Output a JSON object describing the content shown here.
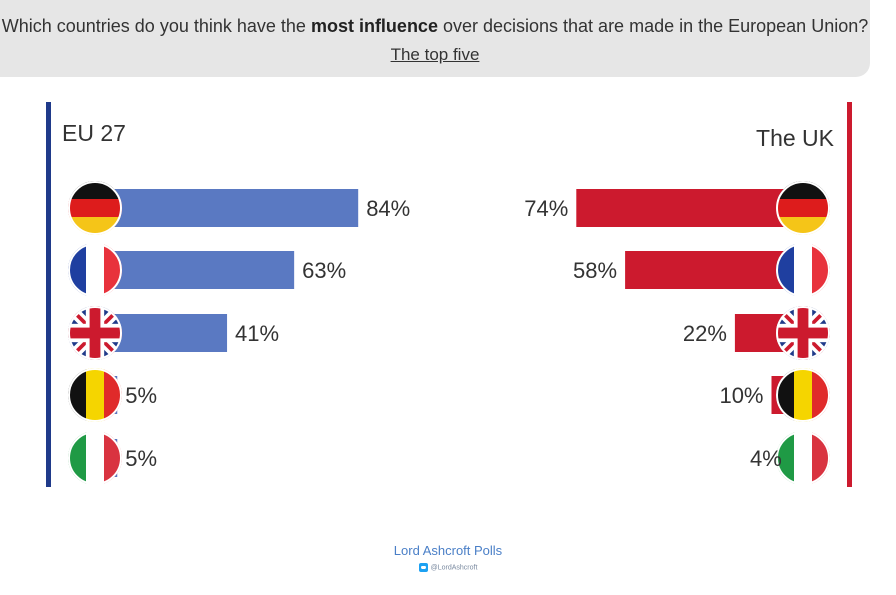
{
  "header": {
    "question_before": "Which countries do you think have the ",
    "question_bold": "most influence",
    "question_after": " over decisions that are made in the European Union?",
    "subtitle": "The top five"
  },
  "footer": {
    "brand": "Lord Ashcroft Polls",
    "handle": "@LordAshcroft",
    "twitter_icon": "twitter-bird-icon"
  },
  "colors": {
    "eu_bar": "#5a79c2",
    "uk_bar": "#cc1a2e",
    "eu_line": "#1f3a8a",
    "uk_line": "#cc1a2e"
  },
  "chart_data": [
    {
      "type": "bar",
      "title": "EU 27",
      "orientation": "horizontal",
      "categories": [
        "Germany",
        "France",
        "UK",
        "Belgium",
        "Italy"
      ],
      "category_icons": [
        "germany-flag-icon",
        "france-flag-icon",
        "uk-flag-icon",
        "belgium-flag-icon",
        "italy-flag-icon"
      ],
      "values": [
        84,
        63,
        41,
        5,
        5
      ],
      "labels": [
        "84%",
        "63%",
        "41%",
        "5%",
        "5%"
      ],
      "unit": "%",
      "xlim": [
        0,
        100
      ],
      "bar_color": "#5a79c2"
    },
    {
      "type": "bar",
      "title": "The UK",
      "orientation": "horizontal",
      "direction": "right-to-left",
      "categories": [
        "Germany",
        "France",
        "UK",
        "Belgium",
        "Italy"
      ],
      "category_icons": [
        "germany-flag-icon",
        "france-flag-icon",
        "uk-flag-icon",
        "belgium-flag-icon",
        "italy-flag-icon"
      ],
      "values": [
        74,
        58,
        22,
        10,
        4
      ],
      "labels": [
        "74%",
        "58%",
        "22%",
        "10%",
        "4%"
      ],
      "unit": "%",
      "xlim": [
        0,
        100
      ],
      "bar_color": "#cc1a2e"
    }
  ]
}
